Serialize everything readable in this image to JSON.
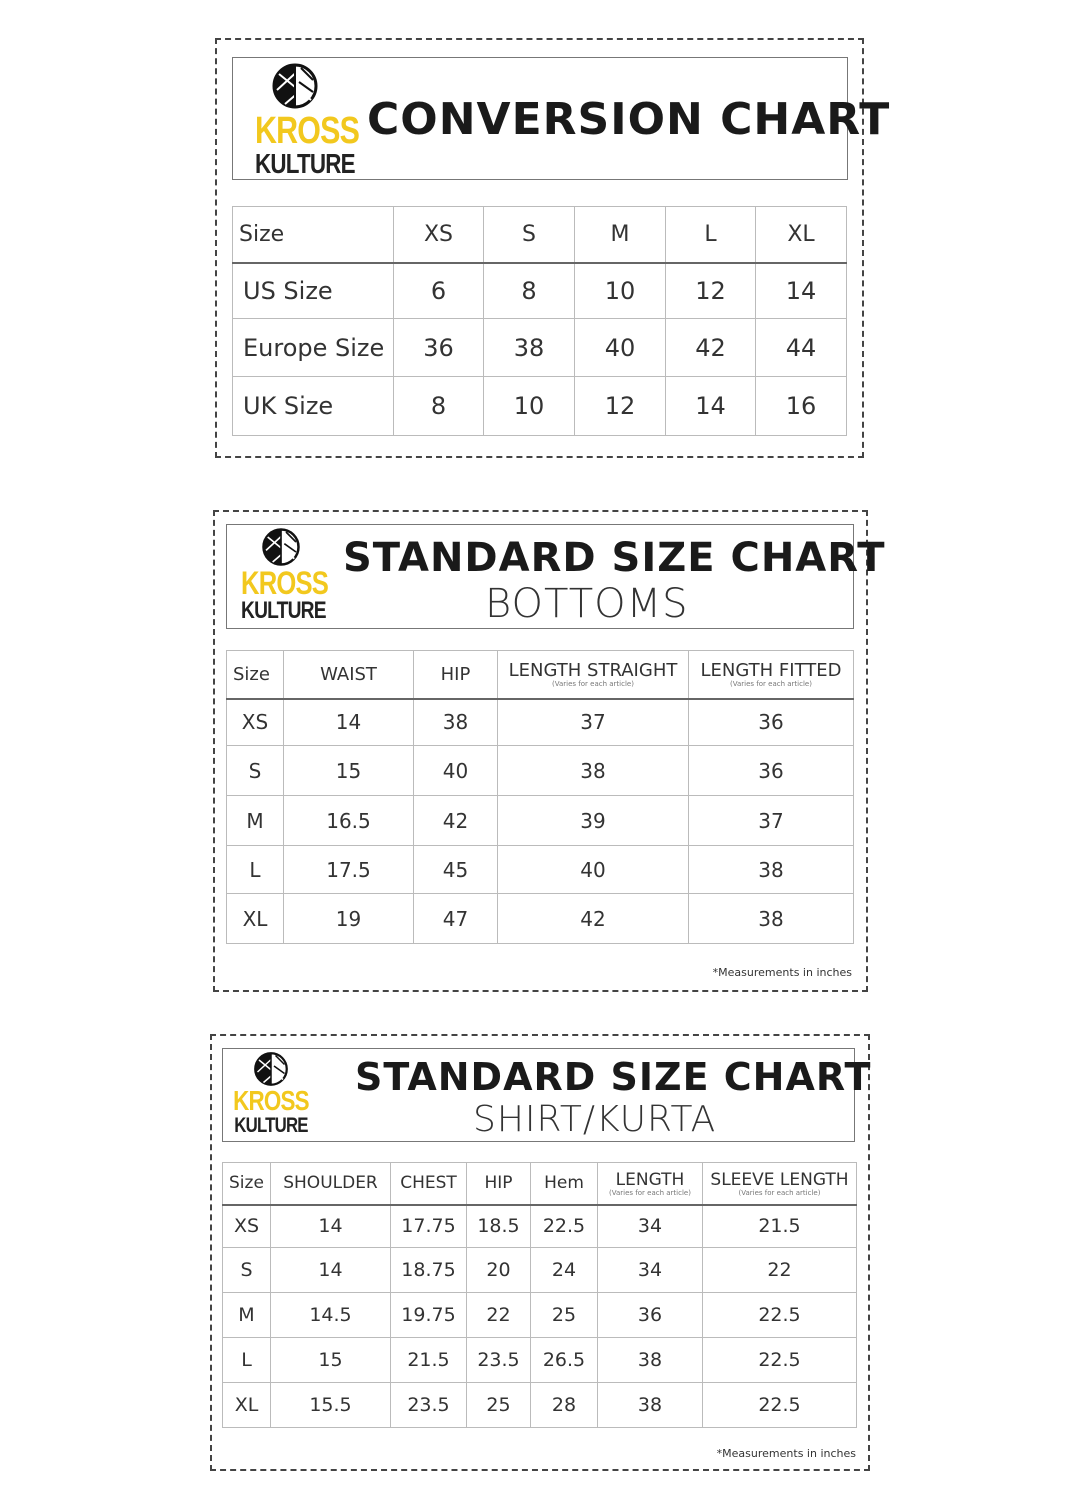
{
  "logo": {
    "line1": "KROSS",
    "line2": "KULTURE",
    "yellow": "#f2c81e",
    "black": "#222222"
  },
  "conversion": {
    "title": "CONVERSION CHART",
    "header": [
      "Size",
      "XS",
      "S",
      "M",
      "L",
      "XL"
    ],
    "rows": [
      [
        "US Size",
        "6",
        "8",
        "10",
        "12",
        "14"
      ],
      [
        "Europe Size",
        "36",
        "38",
        "40",
        "42",
        "44"
      ],
      [
        "UK Size",
        "8",
        "10",
        "12",
        "14",
        "16"
      ]
    ]
  },
  "bottoms": {
    "title": "STANDARD SIZE CHART",
    "subtitle": "BOTTOMS",
    "header": [
      "Size",
      "WAIST",
      "HIP",
      "LENGTH STRAIGHT",
      "LENGTH FITTED"
    ],
    "header_notes": [
      "",
      "",
      "",
      "(Varies for each article)",
      "(Varies for each article)"
    ],
    "rows": [
      [
        "XS",
        "14",
        "38",
        "37",
        "36"
      ],
      [
        "S",
        "15",
        "40",
        "38",
        "36"
      ],
      [
        "M",
        "16.5",
        "42",
        "39",
        "37"
      ],
      [
        "L",
        "17.5",
        "45",
        "40",
        "38"
      ],
      [
        "XL",
        "19",
        "47",
        "42",
        "38"
      ]
    ],
    "footnote": "*Measurements in inches"
  },
  "shirt": {
    "title": "STANDARD SIZE CHART",
    "subtitle": "SHIRT/KURTA",
    "header": [
      "Size",
      "SHOULDER",
      "CHEST",
      "HIP",
      "Hem",
      "LENGTH",
      "SLEEVE LENGTH"
    ],
    "header_notes": [
      "",
      "",
      "",
      "",
      "",
      "(Varies for each article)",
      "(Varies for each article)"
    ],
    "rows": [
      [
        "XS",
        "14",
        "17.75",
        "18.5",
        "22.5",
        "34",
        "21.5"
      ],
      [
        "S",
        "14",
        "18.75",
        "20",
        "24",
        "34",
        "22"
      ],
      [
        "M",
        "14.5",
        "19.75",
        "22",
        "25",
        "36",
        "22.5"
      ],
      [
        "L",
        "15",
        "21.5",
        "23.5",
        "26.5",
        "38",
        "22.5"
      ],
      [
        "XL",
        "15.5",
        "23.5",
        "25",
        "28",
        "38",
        "22.5"
      ]
    ],
    "footnote": "*Measurements in inches"
  }
}
